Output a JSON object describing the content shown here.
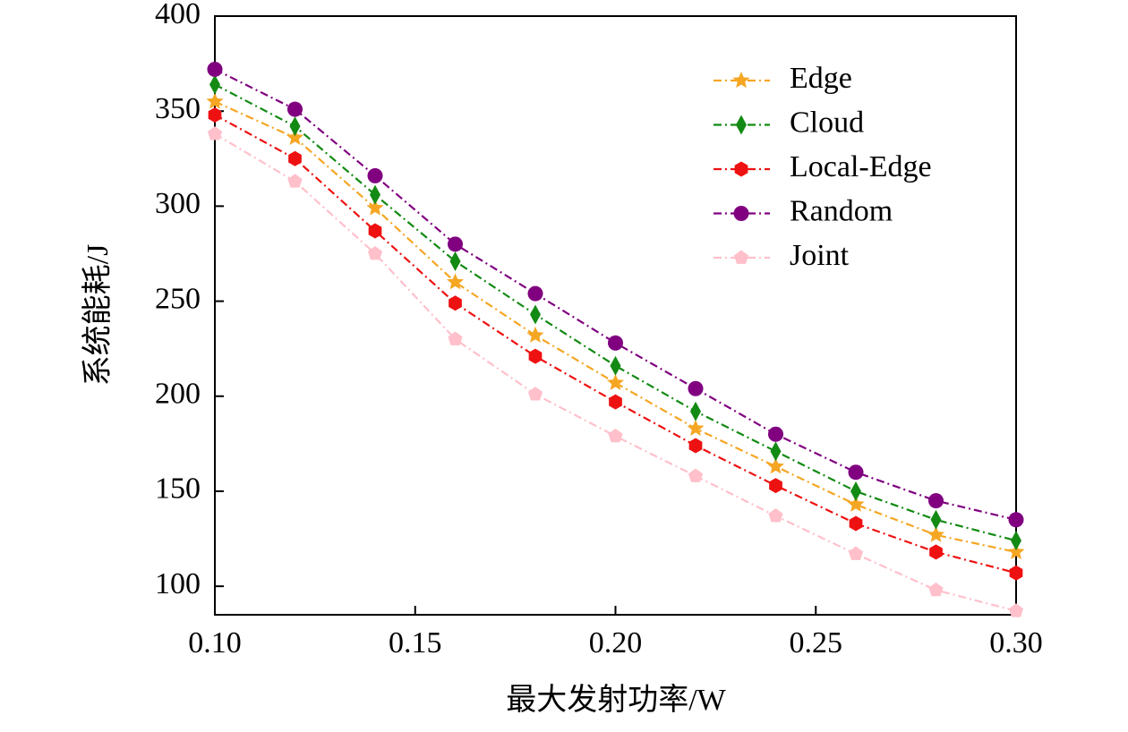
{
  "chart_data": {
    "type": "line",
    "xlabel": "最大发射功率/W",
    "ylabel": "系统能耗/J",
    "x": [
      0.1,
      0.12,
      0.14,
      0.16,
      0.18,
      0.2,
      0.22,
      0.24,
      0.26,
      0.28,
      0.3
    ],
    "series": [
      {
        "name": "Edge",
        "color": "#f5a623",
        "marker": "star",
        "values": [
          355,
          336,
          299,
          260,
          232,
          207,
          183,
          163,
          143,
          127,
          118
        ]
      },
      {
        "name": "Cloud",
        "color": "#138a13",
        "marker": "diamond",
        "values": [
          364,
          342,
          306,
          271,
          243,
          216,
          192,
          171,
          150,
          135,
          124
        ]
      },
      {
        "name": "Local-Edge",
        "color": "#ee1111",
        "marker": "hexagon",
        "values": [
          348,
          325,
          287,
          249,
          221,
          197,
          174,
          153,
          133,
          118,
          107
        ]
      },
      {
        "name": "Random",
        "color": "#800080",
        "marker": "circle",
        "values": [
          372,
          351,
          316,
          280,
          254,
          228,
          204,
          180,
          160,
          145,
          135
        ]
      },
      {
        "name": "Joint",
        "color": "#ffc0cb",
        "marker": "pentagon",
        "values": [
          338,
          313,
          275,
          230,
          201,
          179,
          158,
          137,
          117,
          98,
          87
        ]
      }
    ],
    "xlim": [
      0.1,
      0.3
    ],
    "xticks": [
      {
        "value": 0.1,
        "label": "0.10"
      },
      {
        "value": 0.15,
        "label": "0.15"
      },
      {
        "value": 0.2,
        "label": "0.20"
      },
      {
        "value": 0.25,
        "label": "0.25"
      },
      {
        "value": 0.3,
        "label": "0.30"
      }
    ],
    "ylim": [
      85,
      400
    ],
    "yticks": [
      100,
      150,
      200,
      250,
      300,
      350,
      400
    ],
    "legend": "upper right"
  }
}
